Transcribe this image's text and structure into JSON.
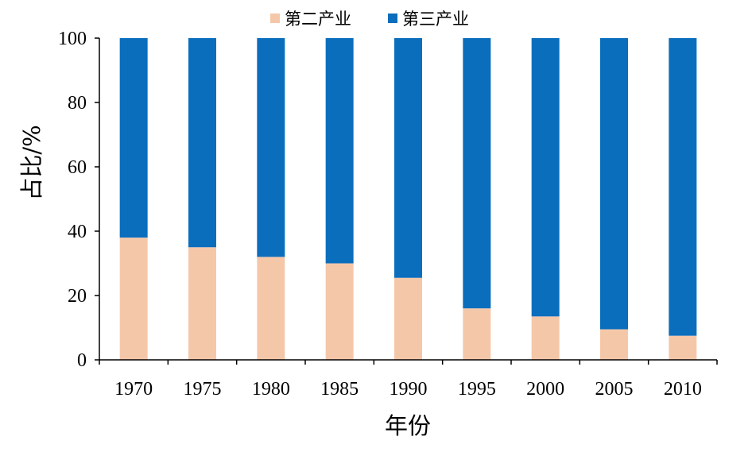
{
  "chart_data": {
    "type": "bar",
    "stacked": true,
    "categories": [
      "1970",
      "1975",
      "1980",
      "1985",
      "1990",
      "1995",
      "2000",
      "2005",
      "2010"
    ],
    "series": [
      {
        "name": "第二产业",
        "color": "#F5C7A9",
        "values": [
          38,
          35,
          32,
          30,
          25.5,
          16,
          13.5,
          9.5,
          7.5
        ]
      },
      {
        "name": "第三产业",
        "color": "#0A6EBD",
        "values": [
          62,
          65,
          68,
          70,
          74.5,
          84,
          86.5,
          90.5,
          92.5
        ]
      }
    ],
    "xlabel": "年份",
    "ylabel": "占比/%",
    "ylim": [
      0,
      100
    ],
    "yticks": [
      0,
      20,
      40,
      60,
      80,
      100
    ],
    "grid": false,
    "legend_position": "top-center"
  }
}
